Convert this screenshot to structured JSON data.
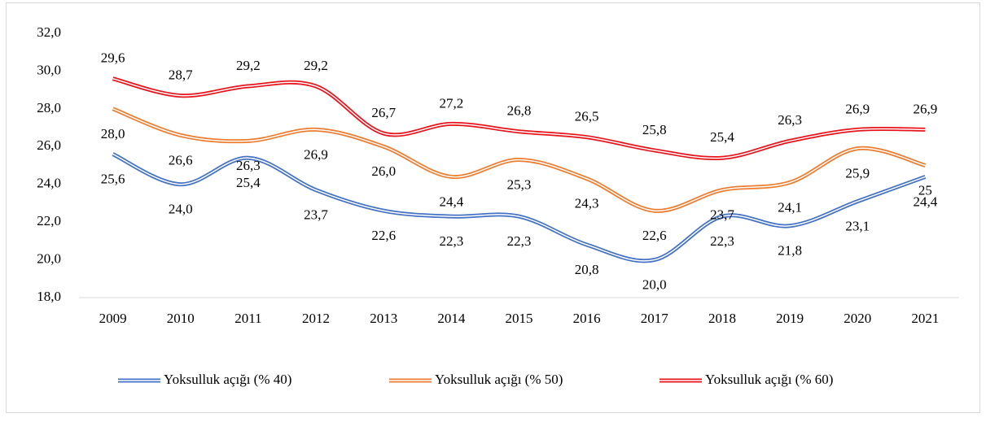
{
  "chart_data": {
    "type": "line",
    "categories": [
      "2009",
      "2010",
      "2011",
      "2012",
      "2013",
      "2014",
      "2015",
      "2016",
      "2017",
      "2018",
      "2019",
      "2020",
      "2021"
    ],
    "series": [
      {
        "name": "Yoksulluk açığı (% 40)",
        "color": "#4472c4",
        "values": [
          25.6,
          24.0,
          25.4,
          23.7,
          22.6,
          22.3,
          22.3,
          20.8,
          20.0,
          22.3,
          21.8,
          23.1,
          24.4
        ],
        "value_labels": [
          "25,6",
          "24,0",
          "25,4",
          "23,7",
          "22,6",
          "22,3",
          "22,3",
          "20,8",
          "20,0",
          "22,3",
          "21,8",
          "23,1",
          "24,4"
        ]
      },
      {
        "name": "Yoksulluk açığı (% 50)",
        "color": "#ed7d31",
        "values": [
          28.0,
          26.6,
          26.3,
          26.9,
          26.0,
          24.4,
          25.3,
          24.3,
          22.6,
          23.7,
          24.1,
          25.9,
          25
        ],
        "value_labels": [
          "28,0",
          "26,6",
          "26,3",
          "26,9",
          "26,0",
          "24,4",
          "25,3",
          "24,3",
          "22,6",
          "23,7",
          "24,1",
          "25,9",
          "25"
        ]
      },
      {
        "name": "Yoksulluk açığı (% 60)",
        "color": "#e8141c",
        "values": [
          29.6,
          28.7,
          29.2,
          29.2,
          26.7,
          27.2,
          26.8,
          26.5,
          25.8,
          25.4,
          26.3,
          26.9,
          26.9
        ],
        "value_labels": [
          "29,6",
          "28,7",
          "29,2",
          "29,2",
          "26,7",
          "27,2",
          "26,8",
          "26,5",
          "25,8",
          "25,4",
          "26,3",
          "26,9",
          "26,9"
        ]
      }
    ],
    "ylim": [
      18,
      32
    ],
    "yticks": [
      {
        "value": 18,
        "label": "18,0"
      },
      {
        "value": 20,
        "label": "20,0"
      },
      {
        "value": 22,
        "label": "22,0"
      },
      {
        "value": 24,
        "label": "24,0"
      },
      {
        "value": 26,
        "label": "26,0"
      },
      {
        "value": 28,
        "label": "28,0"
      },
      {
        "value": 30,
        "label": "30,0"
      },
      {
        "value": 32,
        "label": "32,0"
      }
    ],
    "legend": "bottom"
  }
}
